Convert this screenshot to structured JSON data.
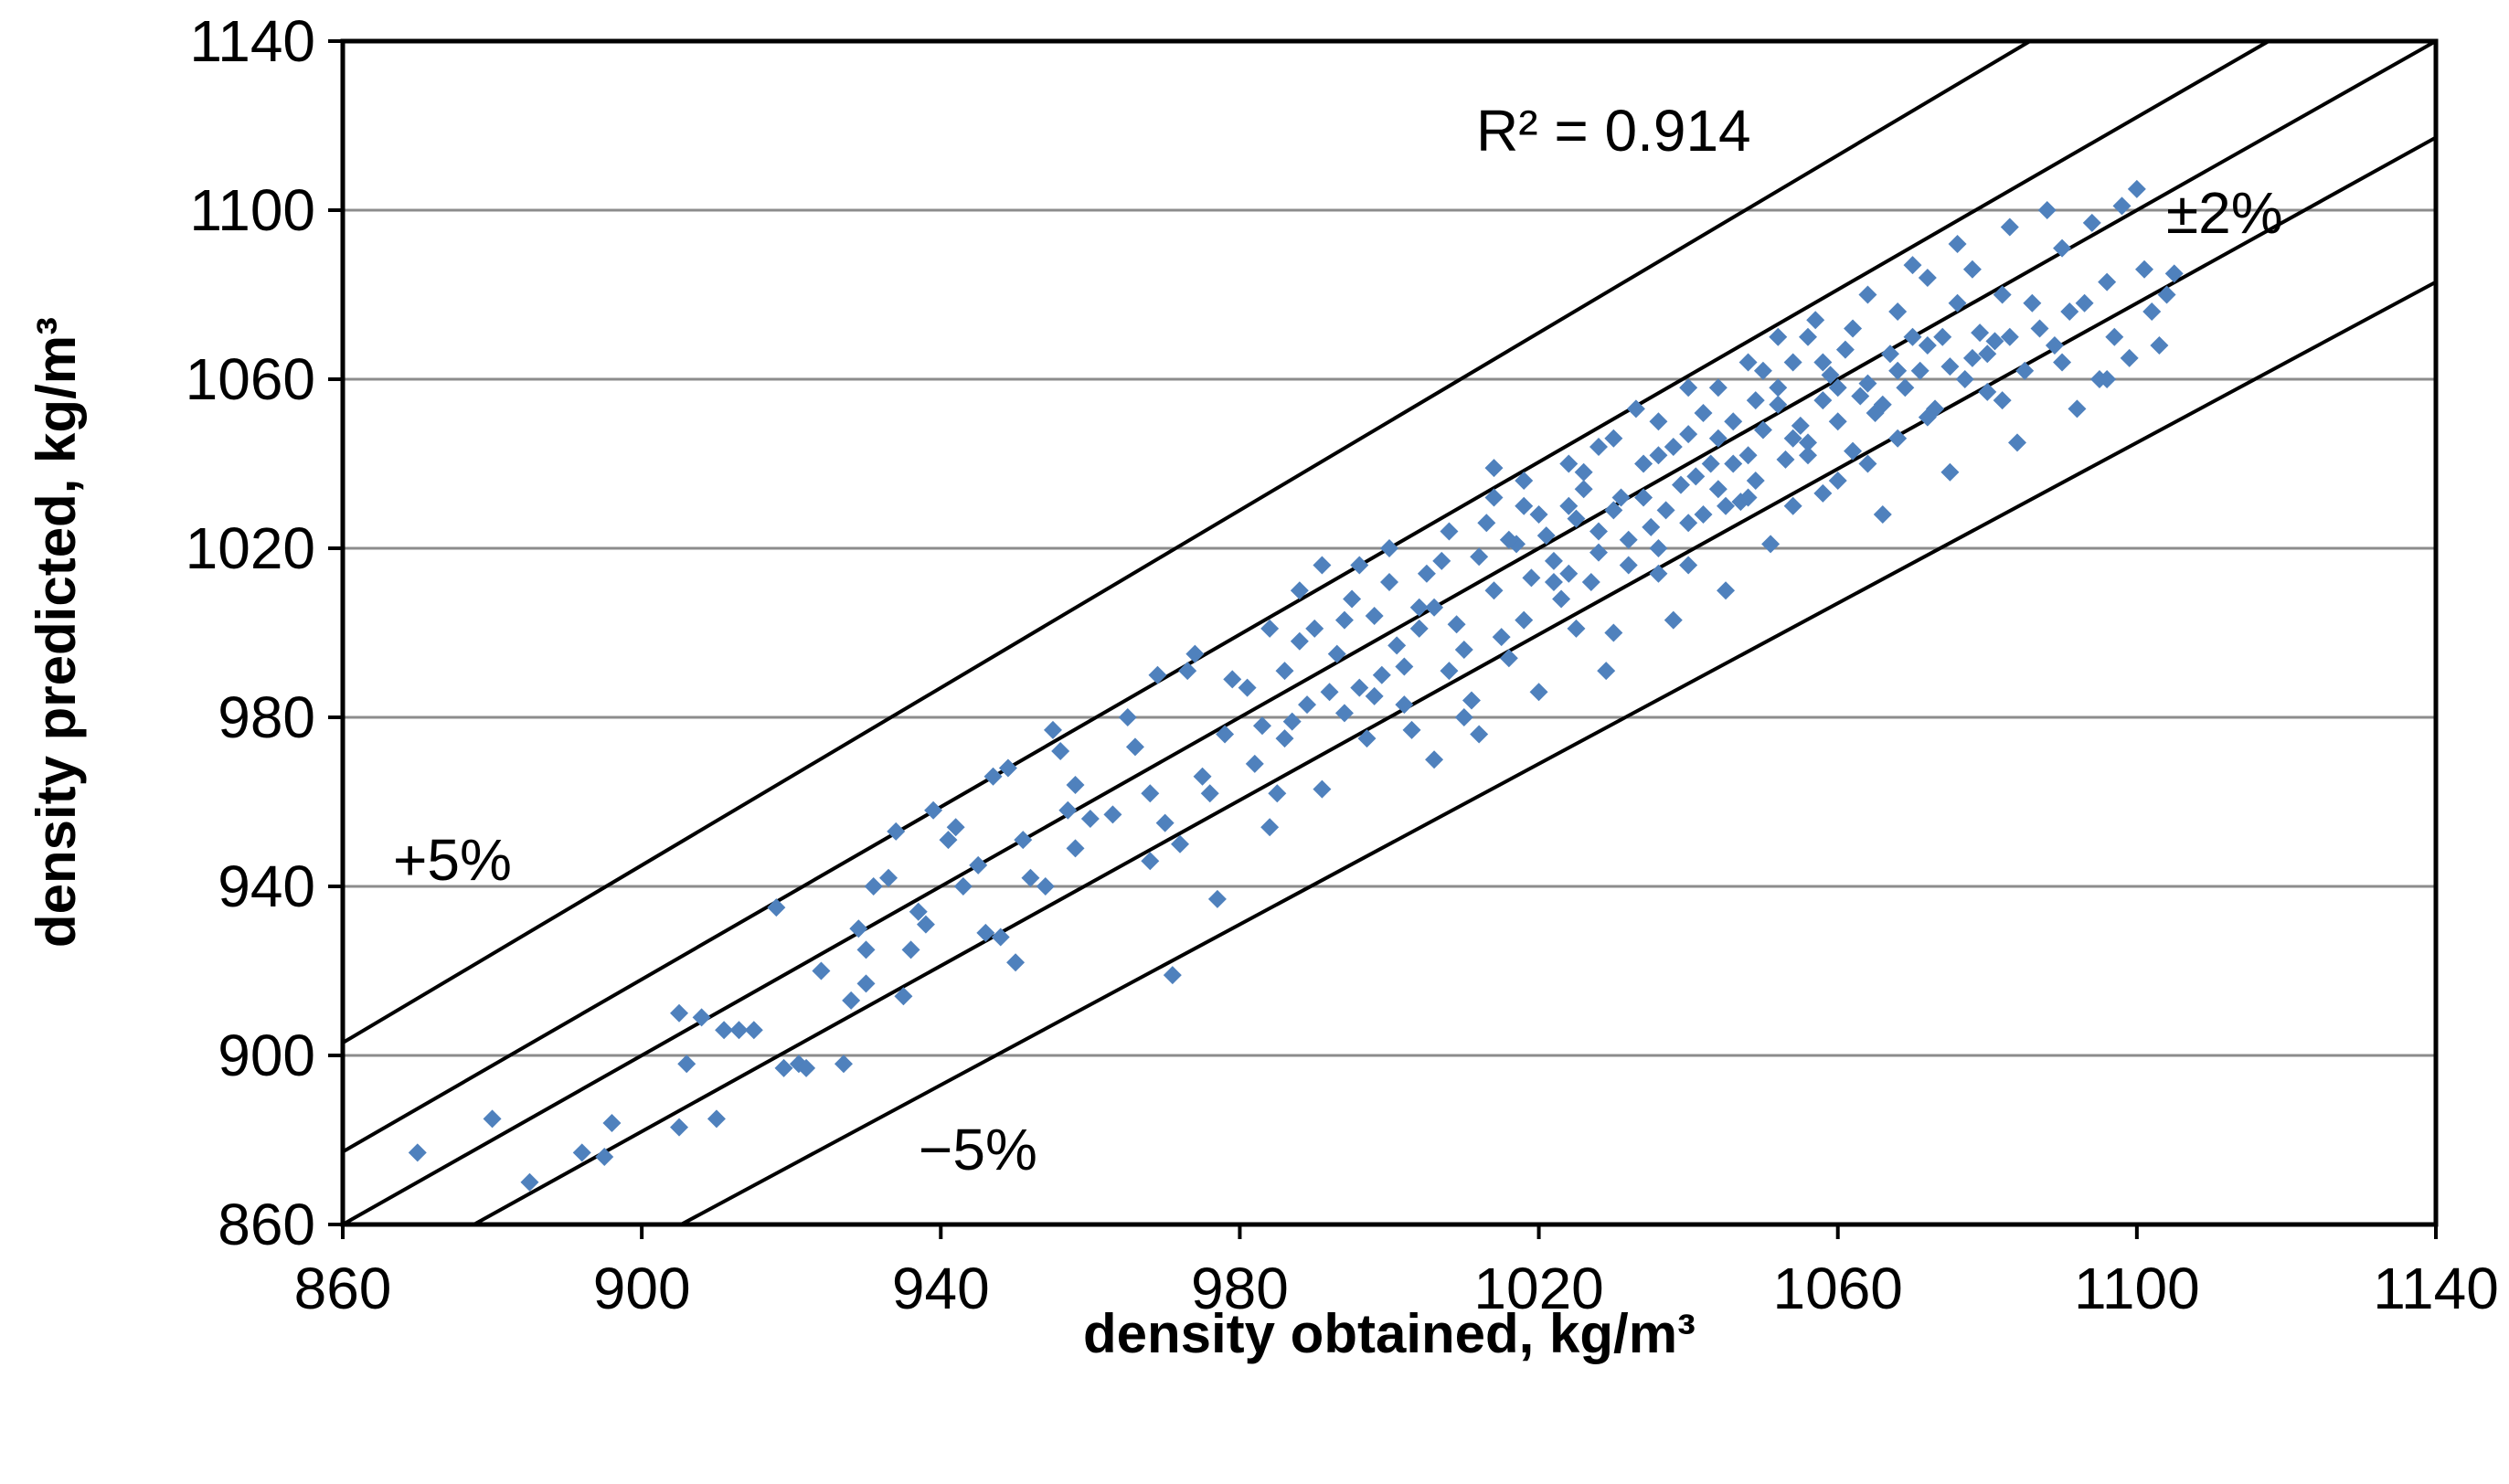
{
  "chart_data": {
    "type": "scatter",
    "title": "",
    "xlabel": "density obtained, kg/m³",
    "ylabel": "density predicted, kg/m³",
    "xlim": [
      860,
      1140
    ],
    "ylim": [
      860,
      1140
    ],
    "x_ticks": [
      860,
      900,
      940,
      980,
      1020,
      1060,
      1100,
      1140
    ],
    "y_ticks": [
      860,
      900,
      940,
      980,
      1020,
      1060,
      1100,
      1140
    ],
    "grid": "horizontal",
    "legend": "none",
    "marker_color": "#4F81BD",
    "reference_lines": [
      {
        "name": "+5%",
        "factor": 1.05
      },
      {
        "name": "+2%",
        "factor": 1.02
      },
      {
        "name": "1:1",
        "factor": 1.0
      },
      {
        "name": "-2%",
        "factor": 0.98
      },
      {
        "name": "-5%",
        "factor": 0.95
      }
    ],
    "annotations": {
      "r_squared": "R² = 0.914",
      "plus5": "+5%",
      "minus5": "−5%",
      "pm2": "±2%"
    },
    "series": [
      {
        "name": "density",
        "points": [
          [
            870,
            877
          ],
          [
            880,
            885
          ],
          [
            885,
            870
          ],
          [
            892,
            877
          ],
          [
            895,
            876
          ],
          [
            896,
            884
          ],
          [
            905,
            910
          ],
          [
            905,
            883
          ],
          [
            906,
            898
          ],
          [
            908,
            909
          ],
          [
            910,
            885
          ],
          [
            911,
            906
          ],
          [
            913,
            906
          ],
          [
            915,
            906
          ],
          [
            918,
            935
          ],
          [
            919,
            897
          ],
          [
            921,
            898
          ],
          [
            922,
            897
          ],
          [
            924,
            920
          ],
          [
            927,
            898
          ],
          [
            928,
            913
          ],
          [
            929,
            930
          ],
          [
            930,
            917
          ],
          [
            930,
            925
          ],
          [
            931,
            940
          ],
          [
            933,
            942
          ],
          [
            934,
            953
          ],
          [
            935,
            914
          ],
          [
            936,
            925
          ],
          [
            937,
            934
          ],
          [
            938,
            931
          ],
          [
            939,
            958
          ],
          [
            941,
            951
          ],
          [
            942,
            954
          ],
          [
            943,
            940
          ],
          [
            945,
            945
          ],
          [
            946,
            929
          ],
          [
            948,
            928
          ],
          [
            947,
            966
          ],
          [
            949,
            968
          ],
          [
            950,
            922
          ],
          [
            951,
            951
          ],
          [
            952,
            942
          ],
          [
            954,
            940
          ],
          [
            955,
            977
          ],
          [
            956,
            972
          ],
          [
            957,
            958
          ],
          [
            958,
            964
          ],
          [
            958,
            949
          ],
          [
            960,
            956
          ],
          [
            963,
            957
          ],
          [
            965,
            980
          ],
          [
            966,
            973
          ],
          [
            968,
            962
          ],
          [
            968,
            946
          ],
          [
            969,
            990
          ],
          [
            970,
            955
          ],
          [
            971,
            919
          ],
          [
            972,
            950
          ],
          [
            973,
            991
          ],
          [
            974,
            995
          ],
          [
            975,
            966
          ],
          [
            976,
            962
          ],
          [
            977,
            937
          ],
          [
            978,
            976
          ],
          [
            979,
            989
          ],
          [
            981,
            987
          ],
          [
            983,
            978
          ],
          [
            984,
            954
          ],
          [
            985,
            962
          ],
          [
            986,
            991
          ],
          [
            987,
            979
          ],
          [
            988,
            998
          ],
          [
            989,
            983
          ],
          [
            990,
            1001
          ],
          [
            991,
            1016
          ],
          [
            991,
            963
          ],
          [
            993,
            995
          ],
          [
            994,
            1003
          ],
          [
            995,
            1008
          ],
          [
            996,
            987
          ],
          [
            997,
            975
          ],
          [
            998,
            1004
          ],
          [
            999,
            990
          ],
          [
            1000,
            1012
          ],
          [
            1001,
            997
          ],
          [
            1002,
            983
          ],
          [
            1003,
            977
          ],
          [
            1004,
            1001
          ],
          [
            1005,
            1014
          ],
          [
            1006,
            970
          ],
          [
            1006,
            1006
          ],
          [
            1007,
            1017
          ],
          [
            1008,
            991
          ],
          [
            1009,
            1002
          ],
          [
            1010,
            980
          ],
          [
            1011,
            984
          ],
          [
            1012,
            976
          ],
          [
            1013,
            1026
          ],
          [
            1014,
            1039
          ],
          [
            1014,
            1010
          ],
          [
            1015,
            999
          ],
          [
            1016,
            994
          ],
          [
            1017,
            1021
          ],
          [
            1018,
            1003
          ],
          [
            1019,
            1013
          ],
          [
            1020,
            986
          ],
          [
            1021,
            1023
          ],
          [
            1022,
            1017
          ],
          [
            1023,
            1008
          ],
          [
            1024,
            1030
          ],
          [
            1025,
            1001
          ],
          [
            1025,
            1027
          ],
          [
            1026,
            1038
          ],
          [
            1027,
            1012
          ],
          [
            1028,
            1019
          ],
          [
            1029,
            991
          ],
          [
            1030,
            1029
          ],
          [
            1030,
            1000
          ],
          [
            1031,
            1032
          ],
          [
            1032,
            1022
          ],
          [
            1033,
            1053
          ],
          [
            1034,
            1032
          ],
          [
            1035,
            1025
          ],
          [
            1036,
            1042
          ],
          [
            1036,
            1014
          ],
          [
            1037,
            1029
          ],
          [
            1038,
            1003
          ],
          [
            1039,
            1035
          ],
          [
            1040,
            1047
          ],
          [
            1040,
            1016
          ],
          [
            1041,
            1037
          ],
          [
            1042,
            1028
          ],
          [
            1043,
            1040
          ],
          [
            1044,
            1046
          ],
          [
            1045,
            1030
          ],
          [
            1045,
            1010
          ],
          [
            1046,
            1050
          ],
          [
            1047,
            1031
          ],
          [
            1048,
            1042
          ],
          [
            1049,
            1055
          ],
          [
            1049,
            1036
          ],
          [
            1050,
            1048
          ],
          [
            1051,
            1021
          ],
          [
            1052,
            1058
          ],
          [
            1053,
            1041
          ],
          [
            1054,
            1064
          ],
          [
            1054,
            1030
          ],
          [
            1055,
            1049
          ],
          [
            1056,
            1045
          ],
          [
            1057,
            1074
          ],
          [
            1058,
            1055
          ],
          [
            1058,
            1033
          ],
          [
            1059,
            1061
          ],
          [
            1060,
            1050
          ],
          [
            1061,
            1067
          ],
          [
            1062,
            1043
          ],
          [
            1063,
            1056
          ],
          [
            1064,
            1059
          ],
          [
            1064,
            1080
          ],
          [
            1065,
            1052
          ],
          [
            1066,
            1028
          ],
          [
            1067,
            1066
          ],
          [
            1068,
            1046
          ],
          [
            1069,
            1058
          ],
          [
            1070,
            1070
          ],
          [
            1070,
            1087
          ],
          [
            1071,
            1062
          ],
          [
            1072,
            1051
          ],
          [
            1073,
            1053
          ],
          [
            1074,
            1070
          ],
          [
            1075,
            1063
          ],
          [
            1075,
            1038
          ],
          [
            1076,
            1092
          ],
          [
            1077,
            1060
          ],
          [
            1078,
            1065
          ],
          [
            1079,
            1071
          ],
          [
            1080,
            1057
          ],
          [
            1081,
            1069
          ],
          [
            1082,
            1055
          ],
          [
            1083,
            1096
          ],
          [
            1083,
            1070
          ],
          [
            1084,
            1045
          ],
          [
            1085,
            1062
          ],
          [
            1086,
            1078
          ],
          [
            1087,
            1072
          ],
          [
            1088,
            1100
          ],
          [
            1089,
            1068
          ],
          [
            1090,
            1091
          ],
          [
            1091,
            1076
          ],
          [
            1092,
            1053
          ],
          [
            1093,
            1078
          ],
          [
            1094,
            1097
          ],
          [
            1095,
            1060
          ],
          [
            1096,
            1083
          ],
          [
            1097,
            1070
          ],
          [
            1098,
            1101
          ],
          [
            1099,
            1065
          ],
          [
            1100,
            1105
          ],
          [
            1101,
            1086
          ],
          [
            1102,
            1076
          ],
          [
            1103,
            1068
          ],
          [
            1104,
            1080
          ],
          [
            1105,
            1085
          ],
          [
            1016,
            1022
          ],
          [
            1020,
            1028
          ],
          [
            1022,
            1012
          ],
          [
            1026,
            1034
          ],
          [
            1028,
            1024
          ],
          [
            1032,
            1016
          ],
          [
            1034,
            1040
          ],
          [
            1038,
            1044
          ],
          [
            1042,
            1052
          ],
          [
            1044,
            1058
          ],
          [
            1046,
            1040
          ],
          [
            1048,
            1032
          ],
          [
            1050,
            1062
          ],
          [
            1052,
            1054
          ],
          [
            1054,
            1046
          ],
          [
            1056,
            1070
          ],
          [
            1058,
            1064
          ],
          [
            1060,
            1058
          ],
          [
            1062,
            1072
          ],
          [
            1066,
            1054
          ],
          [
            1068,
            1076
          ],
          [
            1072,
            1068
          ],
          [
            1076,
            1078
          ],
          [
            1080,
            1066
          ],
          [
            984,
            1001
          ],
          [
            988,
            1010
          ],
          [
            992,
            986
          ],
          [
            996,
            1016
          ],
          [
            1000,
            1020
          ],
          [
            1004,
            1006
          ],
          [
            1008,
            1024
          ],
          [
            1012,
            1018
          ],
          [
            1018,
            1030
          ],
          [
            1024,
            1040
          ],
          [
            1030,
            1046
          ],
          [
            1036,
            1050
          ],
          [
            1040,
            1058
          ],
          [
            982,
            969
          ],
          [
            986,
            975
          ],
          [
            994,
            981
          ],
          [
            998,
            985
          ],
          [
            1002,
            992
          ],
          [
            1010,
            996
          ],
          [
            1014,
            1032
          ],
          [
            1018,
            1036
          ],
          [
            1024,
            1014
          ],
          [
            1028,
            1044
          ],
          [
            1036,
            1020
          ],
          [
            1040,
            1026
          ],
          [
            1044,
            1034
          ],
          [
            1048,
            1064
          ],
          [
            1052,
            1070
          ],
          [
            1056,
            1042
          ],
          [
            1060,
            1036
          ],
          [
            1064,
            1040
          ],
          [
            1068,
            1062
          ],
          [
            1072,
            1084
          ],
          [
            1078,
            1086
          ],
          [
            1082,
            1080
          ],
          [
            1090,
            1064
          ],
          [
            1096,
            1060
          ]
        ]
      }
    ]
  }
}
